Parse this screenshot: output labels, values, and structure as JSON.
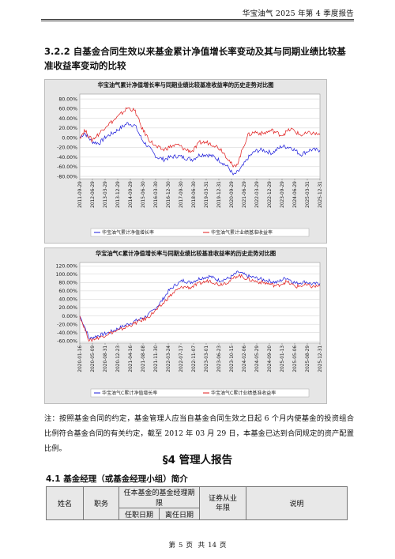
{
  "header": {
    "text": "华宝油气 2025 年第 4 季度报告"
  },
  "section": {
    "heading": "3.2.2 自基金合同生效以来基金累计净值增长率变动及其与同期业绩比较基准收益率变动的比较"
  },
  "chart_data": [
    {
      "type": "line",
      "title": "华宝油气累计净值增长率与同期业绩比较基准收益率的历史走势对比图",
      "yticks": [
        "80.00%",
        "60.00%",
        "40.00%",
        "20.00%",
        "0.00%",
        "-20.00%",
        "-40.00%",
        "-60.00%",
        "-80.00%"
      ],
      "ylim": [
        -0.85,
        0.9
      ],
      "x_ticks": [
        "2011-09-29",
        "2012-06-29",
        "2013-03-29",
        "2013-12-29",
        "2014-09-29",
        "2015-06-30",
        "2016-03-30",
        "2016-12-30",
        "2017-09-30",
        "2018-06-30",
        "2019-03-31",
        "2019-12-31",
        "2020-09-29",
        "2021-06-29",
        "2022-03-29",
        "2022-12-29",
        "2023-09-29",
        "2024-06-29",
        "2025-03-31",
        "2025-12-31"
      ],
      "legend": [
        "华宝油气累计净值增长率",
        "华宝油气累计业绩基准收益率"
      ],
      "colors": {
        "nav": "#1a1adb",
        "benchmark": "#e01818"
      },
      "series": [
        {
          "name": "华宝油气累计净值增长率",
          "x": [
            0,
            0.02,
            0.05,
            0.08,
            0.11,
            0.14,
            0.17,
            0.2,
            0.23,
            0.26,
            0.29,
            0.32,
            0.35,
            0.38,
            0.41,
            0.44,
            0.47,
            0.5,
            0.53,
            0.56,
            0.59,
            0.62,
            0.64,
            0.66,
            0.68,
            0.7,
            0.73,
            0.76,
            0.8,
            0.84,
            0.88,
            0.92,
            0.96,
            1.0
          ],
          "values": [
            0.0,
            0.1,
            -0.08,
            -0.12,
            0.02,
            0.1,
            0.2,
            0.3,
            0.25,
            -0.05,
            -0.22,
            -0.4,
            -0.45,
            -0.4,
            -0.38,
            -0.42,
            -0.45,
            -0.35,
            -0.35,
            -0.4,
            -0.5,
            -0.62,
            -0.78,
            -0.7,
            -0.58,
            -0.42,
            -0.28,
            -0.25,
            -0.32,
            -0.18,
            -0.2,
            -0.35,
            -0.25,
            -0.26
          ]
        },
        {
          "name": "华宝油气累计业绩基准收益率",
          "x": [
            0,
            0.02,
            0.05,
            0.08,
            0.11,
            0.14,
            0.17,
            0.2,
            0.23,
            0.26,
            0.29,
            0.32,
            0.35,
            0.38,
            0.41,
            0.44,
            0.47,
            0.5,
            0.53,
            0.56,
            0.59,
            0.62,
            0.64,
            0.66,
            0.68,
            0.7,
            0.73,
            0.76,
            0.8,
            0.84,
            0.88,
            0.92,
            0.96,
            1.0
          ],
          "values": [
            0.0,
            0.15,
            -0.05,
            0.08,
            0.25,
            0.35,
            0.48,
            0.62,
            0.55,
            0.18,
            -0.05,
            -0.2,
            -0.25,
            -0.18,
            -0.15,
            -0.25,
            -0.28,
            -0.1,
            -0.1,
            -0.15,
            -0.25,
            -0.45,
            -0.62,
            -0.5,
            -0.2,
            0.05,
            0.12,
            0.08,
            0.15,
            0.05,
            0.18,
            0.05,
            0.1,
            0.06
          ]
        }
      ]
    },
    {
      "type": "line",
      "title": "华宝油气C累计净值增长率与同期业绩比较基准收益率的历史走势对比图",
      "yticks": [
        "120.00%",
        "100.00%",
        "80.00%",
        "60.00%",
        "40.00%",
        "20.00%",
        "0.00%",
        "-20.00%",
        "-40.00%",
        "-60.00%"
      ],
      "ylim": [
        -0.65,
        1.28
      ],
      "x_ticks": [
        "2020-01-16",
        "2020-05-09",
        "2020-08-31",
        "2020-12-23",
        "2021-04-16",
        "2021-08-08",
        "2021-11-30",
        "2022-03-24",
        "2022-07-17",
        "2022-11-07",
        "2023-03-01",
        "2023-06-23",
        "2023-10-15",
        "2024-02-06",
        "2024-05-29",
        "2024-09-20",
        "2025-01-13",
        "2025-05-06",
        "2025-08-29",
        "2025-12-31"
      ],
      "legend": [
        "华宝油气C累计净值增长率",
        "华宝油气C累计业绩基准收益率"
      ],
      "colors": {
        "nav": "#1a1adb",
        "benchmark": "#e01818"
      },
      "series": [
        {
          "name": "华宝油气C累计净值增长率",
          "x": [
            0,
            0.02,
            0.04,
            0.06,
            0.09,
            0.12,
            0.16,
            0.2,
            0.24,
            0.28,
            0.31,
            0.34,
            0.37,
            0.4,
            0.43,
            0.46,
            0.5,
            0.54,
            0.58,
            0.62,
            0.66,
            0.7,
            0.74,
            0.78,
            0.82,
            0.86,
            0.9,
            0.94,
            0.97,
            1.0
          ],
          "values": [
            0.0,
            -0.25,
            -0.55,
            -0.5,
            -0.45,
            -0.4,
            -0.3,
            -0.2,
            -0.1,
            0.0,
            0.15,
            0.35,
            0.6,
            0.75,
            0.85,
            0.8,
            0.9,
            0.95,
            0.85,
            0.9,
            1.05,
            0.95,
            0.9,
            0.85,
            0.8,
            0.92,
            0.78,
            0.82,
            0.76,
            0.78
          ]
        },
        {
          "name": "华宝油气C累计业绩基准收益率",
          "x": [
            0,
            0.02,
            0.04,
            0.06,
            0.09,
            0.12,
            0.16,
            0.2,
            0.24,
            0.28,
            0.31,
            0.34,
            0.37,
            0.4,
            0.43,
            0.46,
            0.5,
            0.54,
            0.58,
            0.62,
            0.66,
            0.7,
            0.74,
            0.78,
            0.82,
            0.86,
            0.9,
            0.94,
            0.97,
            1.0
          ],
          "values": [
            0.0,
            -0.3,
            -0.6,
            -0.55,
            -0.5,
            -0.42,
            -0.35,
            -0.25,
            -0.15,
            -0.05,
            0.1,
            0.25,
            0.45,
            0.6,
            0.7,
            0.68,
            0.78,
            0.85,
            0.75,
            0.82,
            0.98,
            0.88,
            0.82,
            0.78,
            0.72,
            0.82,
            0.7,
            0.74,
            0.7,
            0.72
          ]
        }
      ]
    }
  ],
  "note": {
    "text": "注：按照基金合同的约定，基金管理人应当自基金合同生效之日起 6 个月内使基金的投资组合比例符合基金合同的有关约定，截至 2012 年 03 月 29 日，本基金已达到合同规定的资产配置比例。"
  },
  "chapter": {
    "title": "§4 管理人报告"
  },
  "subsection": {
    "title": "4.1 基金经理（或基金经理小组）简介"
  },
  "table": {
    "name": "姓名",
    "position": "职务",
    "term": "任本基金的基金经理期限",
    "start": "任职日期",
    "end": "离任日期",
    "years_line1": "证券从业",
    "years_line2": "年限",
    "desc": "说明"
  },
  "footer": {
    "page_label_1": "第",
    "page": "5",
    "page_label_2": "页",
    "total_label_1": "共",
    "total": "14",
    "total_label_2": "页"
  }
}
